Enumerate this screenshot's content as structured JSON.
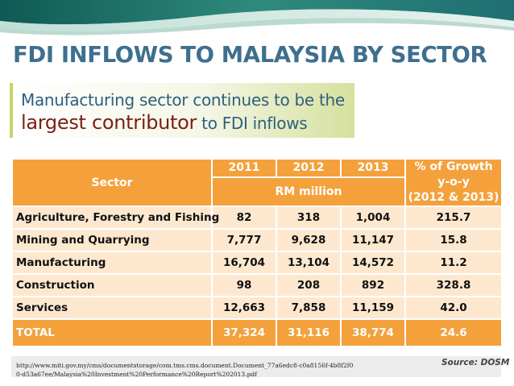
{
  "slide": {
    "title": "FDI INFLOWS TO MALAYSIA BY SECTOR",
    "subtitle_line1": "Manufacturing sector continues to be the",
    "subtitle_emphasis": "largest contributor",
    "subtitle_rest": " to FDI inflows"
  },
  "colors": {
    "title": "#3e6f8f",
    "header_fill": "#f4a13c",
    "row_fill": "#fde8cf",
    "emphasis": "#7a1f14",
    "accent_green": "#c9d46a"
  },
  "table": {
    "header": {
      "sector": "Sector",
      "years": [
        "2011",
        "2012",
        "2013"
      ],
      "unit": "RM million",
      "growth_line1": "% of Growth",
      "growth_line2": "y-o-y",
      "growth_line3": "(2012 & 2013)"
    },
    "rows": [
      {
        "sector": "Agriculture, Forestry and Fishing",
        "y2011": "82",
        "y2012": "318",
        "y2013": "1,004",
        "growth": "215.7"
      },
      {
        "sector": "Mining and Quarrying",
        "y2011": "7,777",
        "y2012": "9,628",
        "y2013": "11,147",
        "growth": "15.8"
      },
      {
        "sector": "Manufacturing",
        "y2011": "16,704",
        "y2012": "13,104",
        "y2013": "14,572",
        "growth": "11.2"
      },
      {
        "sector": "Construction",
        "y2011": "98",
        "y2012": "208",
        "y2013": "892",
        "growth": "328.8"
      },
      {
        "sector": "Services",
        "y2011": "12,663",
        "y2012": "7,858",
        "y2013": "11,159",
        "growth": "42.0"
      }
    ],
    "total": {
      "sector": "TOTAL",
      "y2011": "37,324",
      "y2012": "31,116",
      "y2013": "38,774",
      "growth": "24.6"
    }
  },
  "footer": {
    "url": "http://www.miti.gov.my/cms/documentstorage/com.tms.cms.document.Document_77a6edc8-c0a8156f-4b8f2f00-d53a67ee/Malaysia%20Investment%20Performance%20Report%202013.pdf",
    "source": "Source: DOSM"
  }
}
